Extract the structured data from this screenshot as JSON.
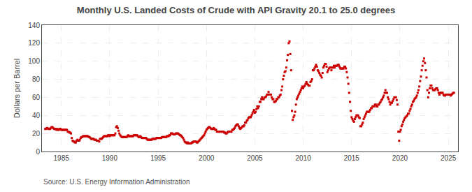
{
  "chart_data": {
    "type": "scatter",
    "title": "Monthly U.S. Landed Costs of Crude with API Gravity 20.1 to 25.0 degrees",
    "ylabel": "Dollars per Barrel",
    "annotations": [
      "Source: U.S. Energy Information Administration"
    ],
    "color": "#cc0000",
    "marker": "square",
    "grid": true,
    "xlim": [
      1983.0,
      2026.0
    ],
    "ylim": [
      0,
      140
    ],
    "xticks": [
      1985,
      1990,
      1995,
      2000,
      2005,
      2010,
      2015,
      2020,
      2025
    ],
    "yticks": [
      0,
      20,
      40,
      60,
      80,
      100,
      120,
      140
    ],
    "x": [
      1983.3333,
      1983.4167,
      1983.5,
      1983.5833,
      1983.6667,
      1983.75,
      1983.8333,
      1983.9167,
      1984,
      1984.0833,
      1984.1667,
      1984.25,
      1984.3333,
      1984.4167,
      1984.5,
      1984.5833,
      1984.6667,
      1984.75,
      1984.8333,
      1984.9167,
      1985,
      1985.0833,
      1985.1667,
      1985.25,
      1985.3333,
      1985.4167,
      1985.5,
      1985.5833,
      1985.6667,
      1985.75,
      1985.8333,
      1985.9167,
      1986,
      1986.0833,
      1986.1667,
      1986.25,
      1986.3333,
      1986.4167,
      1986.5,
      1986.5833,
      1986.6667,
      1986.75,
      1986.8333,
      1986.9167,
      1987,
      1987.0833,
      1987.1667,
      1987.25,
      1987.3333,
      1987.4167,
      1987.5,
      1987.5833,
      1987.6667,
      1987.75,
      1987.8333,
      1987.9167,
      1988,
      1988.0833,
      1988.1667,
      1988.25,
      1988.3333,
      1988.4167,
      1988.5,
      1988.5833,
      1988.6667,
      1988.75,
      1988.8333,
      1988.9167,
      1989,
      1989.0833,
      1989.1667,
      1989.25,
      1989.3333,
      1989.4167,
      1989.5,
      1989.5833,
      1989.6667,
      1989.75,
      1989.8333,
      1989.9167,
      1990,
      1990.0833,
      1990.1667,
      1990.25,
      1990.3333,
      1990.4167,
      1990.5,
      1990.5833,
      1990.6667,
      1990.75,
      1990.8333,
      1990.9167,
      1991,
      1991.0833,
      1991.1667,
      1991.25,
      1991.3333,
      1991.4167,
      1991.5,
      1991.5833,
      1991.6667,
      1991.75,
      1991.8333,
      1991.9167,
      1992,
      1992.0833,
      1992.1667,
      1992.25,
      1992.3333,
      1992.4167,
      1992.5,
      1992.5833,
      1992.6667,
      1992.75,
      1992.8333,
      1992.9167,
      1993,
      1993.0833,
      1993.1667,
      1993.25,
      1993.3333,
      1993.4167,
      1993.5,
      1993.5833,
      1993.6667,
      1993.75,
      1993.8333,
      1993.9167,
      1994,
      1994.0833,
      1994.1667,
      1994.25,
      1994.3333,
      1994.4167,
      1994.5,
      1994.5833,
      1994.6667,
      1994.75,
      1994.8333,
      1994.9167,
      1995,
      1995.0833,
      1995.1667,
      1995.25,
      1995.3333,
      1995.4167,
      1995.5,
      1995.5833,
      1995.6667,
      1995.75,
      1995.8333,
      1995.9167,
      1996,
      1996.0833,
      1996.1667,
      1996.25,
      1996.3333,
      1996.4167,
      1996.5,
      1996.5833,
      1996.6667,
      1996.75,
      1996.8333,
      1996.9167,
      1997,
      1997.0833,
      1997.1667,
      1997.25,
      1997.3333,
      1997.4167,
      1997.5,
      1997.5833,
      1997.6667,
      1997.75,
      1997.8333,
      1997.9167,
      1998,
      1998.0833,
      1998.1667,
      1998.25,
      1998.3333,
      1998.4167,
      1998.5,
      1998.5833,
      1998.6667,
      1998.75,
      1998.8333,
      1998.9167,
      1999,
      1999.0833,
      1999.1667,
      1999.25,
      1999.3333,
      1999.4167,
      1999.5,
      1999.5833,
      1999.6667,
      1999.75,
      1999.8333,
      1999.9167,
      2000,
      2000.0833,
      2000.1667,
      2000.25,
      2000.3333,
      2000.4167,
      2000.5,
      2000.5833,
      2000.6667,
      2000.75,
      2000.8333,
      2000.9167,
      2001,
      2001.0833,
      2001.1667,
      2001.25,
      2001.3333,
      2001.4167,
      2001.5,
      2001.5833,
      2001.6667,
      2001.75,
      2001.8333,
      2001.9167,
      2002,
      2002.0833,
      2002.1667,
      2002.25,
      2002.3333,
      2002.4167,
      2002.5,
      2002.5833,
      2002.6667,
      2002.75,
      2002.8333,
      2002.9167,
      2003,
      2003.0833,
      2003.1667,
      2003.25,
      2003.3333,
      2003.4167,
      2003.5,
      2003.5833,
      2003.6667,
      2003.75,
      2003.8333,
      2003.9167,
      2004,
      2004.0833,
      2004.1667,
      2004.25,
      2004.3333,
      2004.4167,
      2004.5,
      2004.5833,
      2004.6667,
      2004.75,
      2004.8333,
      2004.9167,
      2005,
      2005.0833,
      2005.1667,
      2005.25,
      2005.3333,
      2005.4167,
      2005.5,
      2005.5833,
      2005.6667,
      2005.75,
      2005.8333,
      2005.9167,
      2006,
      2006.0833,
      2006.1667,
      2006.25,
      2006.3333,
      2006.4167,
      2006.5,
      2006.5833,
      2006.6667,
      2006.75,
      2006.8333,
      2006.9167,
      2007,
      2007.0833,
      2007.1667,
      2007.25,
      2007.3333,
      2007.4167,
      2007.5,
      2007.5833,
      2007.6667,
      2007.75,
      2007.8333,
      2007.9167,
      2008,
      2008.0833,
      2008.1667,
      2008.25,
      2008.3333,
      2008.4167,
      2008.5,
      2008.5833,
      2008.6667,
      2008.75,
      2008.8333,
      2008.9167,
      2009,
      2009.0833,
      2009.1667,
      2009.25,
      2009.3333,
      2009.4167,
      2009.5,
      2009.5833,
      2009.6667,
      2009.75,
      2009.8333,
      2009.9167,
      2010,
      2010.0833,
      2010.1667,
      2010.25,
      2010.3333,
      2010.4167,
      2010.5,
      2010.5833,
      2010.6667,
      2010.75,
      2010.8333,
      2010.9167,
      2011,
      2011.0833,
      2011.1667,
      2011.25,
      2011.3333,
      2011.4167,
      2011.5,
      2011.5833,
      2011.6667,
      2011.75,
      2011.8333,
      2011.9167,
      2012,
      2012.0833,
      2012.1667,
      2012.25,
      2012.3333,
      2012.4167,
      2012.5,
      2012.5833,
      2012.6667,
      2012.75,
      2012.8333,
      2012.9167,
      2013,
      2013.0833,
      2013.1667,
      2013.25,
      2013.3333,
      2013.4167,
      2013.5,
      2013.5833,
      2013.6667,
      2013.75,
      2013.8333,
      2013.9167,
      2014,
      2014.0833,
      2014.1667,
      2014.25,
      2014.3333,
      2014.4167,
      2014.5,
      2014.5833,
      2014.6667,
      2014.75,
      2014.8333,
      2014.9167,
      2015,
      2015.0833,
      2015.1667,
      2015.25,
      2015.3333,
      2015.4167,
      2015.5,
      2015.5833,
      2015.6667,
      2015.75,
      2015.8333,
      2015.9167,
      2016,
      2016.0833,
      2016.1667,
      2016.25,
      2016.3333,
      2016.4167,
      2016.5,
      2016.5833,
      2016.6667,
      2016.75,
      2016.8333,
      2016.9167,
      2017,
      2017.0833,
      2017.1667,
      2017.25,
      2017.3333,
      2017.4167,
      2017.5,
      2017.5833,
      2017.6667,
      2017.75,
      2017.8333,
      2017.9167,
      2018,
      2018.0833,
      2018.1667,
      2018.25,
      2018.3333,
      2018.4167,
      2018.5,
      2018.5833,
      2018.6667,
      2018.75,
      2018.8333,
      2018.9167,
      2019,
      2019.0833,
      2019.1667,
      2019.25,
      2019.3333,
      2019.4167,
      2019.5,
      2019.5833,
      2019.6667,
      2019.75,
      2019.8333,
      2019.9167,
      2020,
      2020.0833,
      2020.1667,
      2020.25,
      2020.3333,
      2020.4167,
      2020.5,
      2020.5833,
      2020.6667,
      2020.75,
      2020.8333,
      2020.9167,
      2021,
      2021.0833,
      2021.1667,
      2021.25,
      2021.3333,
      2021.4167,
      2021.5,
      2021.5833,
      2021.6667,
      2021.75,
      2021.8333,
      2021.9167,
      2022,
      2022.0833,
      2022.1667,
      2022.25,
      2022.3333,
      2022.4167,
      2022.5,
      2022.5833,
      2022.6667,
      2022.75,
      2022.8333,
      2022.9167,
      2023,
      2023.0833,
      2023.1667,
      2023.25,
      2023.3333,
      2023.4167,
      2023.5,
      2023.5833,
      2023.6667,
      2023.75,
      2023.8333,
      2023.9167,
      2024,
      2024.0833,
      2024.1667,
      2024.25,
      2024.3333,
      2024.4167,
      2024.5,
      2024.5833,
      2024.6667,
      2024.75,
      2024.8333,
      2024.9167,
      2025,
      2025.0833,
      2025.1667,
      2025.25,
      2025.3333,
      2025.4167,
      2025.5,
      2025.5833
    ],
    "values": [
      25,
      25,
      26,
      26,
      25,
      25,
      25,
      26,
      27,
      27,
      26,
      25,
      25,
      25,
      24,
      25,
      24,
      24,
      25,
      25,
      24,
      24,
      24,
      24,
      24,
      24,
      24,
      24,
      22,
      22,
      21,
      21,
      20,
      15,
      12,
      11,
      11,
      10,
      10,
      12,
      13,
      12,
      12,
      13,
      15,
      16,
      16,
      17,
      17,
      17,
      17,
      17,
      17,
      17,
      16,
      16,
      15,
      14,
      14,
      14,
      14,
      13,
      13,
      13,
      12,
      12,
      12,
      11,
      14,
      14,
      14,
      15,
      16,
      17,
      17,
      17,
      17,
      17,
      18,
      18,
      17,
      18,
      18,
      18,
      18,
      18,
      18,
      20,
      27,
      28,
      26,
      23,
      20,
      18,
      17,
      16,
      16,
      16,
      16,
      16,
      16,
      16,
      17,
      18,
      17,
      17,
      17,
      17,
      17,
      17,
      18,
      18,
      18,
      18,
      18,
      17,
      16,
      16,
      17,
      16,
      15,
      15,
      15,
      15,
      15,
      15,
      14,
      13,
      13,
      13,
      13,
      13,
      13,
      14,
      14,
      14,
      14,
      14,
      15,
      15,
      15,
      15,
      15,
      15,
      15,
      16,
      16,
      16,
      16,
      16,
      16,
      17,
      17,
      17,
      18,
      18,
      20,
      20,
      20,
      19,
      19,
      19,
      20,
      20,
      20,
      20,
      19,
      18,
      18,
      17,
      16,
      15,
      13,
      11,
      10,
      10,
      9,
      10,
      9,
      9,
      9,
      9,
      10,
      10,
      11,
      11,
      11,
      11,
      10,
      10,
      11,
      12,
      13,
      14,
      15,
      16,
      17,
      18,
      20,
      22,
      24,
      25,
      26,
      27,
      27,
      26,
      25,
      25,
      25,
      26,
      25,
      24,
      24,
      22,
      22,
      22,
      22,
      22,
      22,
      22,
      22,
      22,
      21,
      21,
      20,
      20,
      21,
      22,
      22,
      22,
      22,
      22,
      24,
      24,
      25,
      26,
      28,
      29,
      30,
      30,
      28,
      26,
      25,
      26,
      27,
      28,
      28,
      29,
      32,
      32,
      34,
      35,
      37,
      38,
      38,
      38,
      40,
      42,
      44,
      46,
      43,
      44,
      47,
      50,
      48,
      50,
      55,
      55,
      58,
      60,
      58,
      58,
      60,
      60,
      61,
      63,
      63,
      66,
      63,
      63,
      63,
      60,
      58,
      58,
      55,
      55,
      56,
      58,
      58,
      60,
      60,
      62,
      63,
      68,
      72,
      80,
      84,
      88,
      89,
      93,
      101,
      107,
      120,
      122,
      108,
      90,
      45,
      35,
      38,
      40,
      44,
      52,
      58,
      60,
      62,
      64,
      66,
      68,
      70,
      72,
      70,
      72,
      73,
      75,
      77,
      75,
      74,
      73,
      73,
      77,
      78,
      80,
      90,
      90,
      92,
      94,
      96,
      94,
      90,
      89,
      87,
      85,
      84,
      82,
      87,
      93,
      95,
      97,
      97,
      94,
      88,
      90,
      92,
      93,
      93,
      90,
      93,
      93,
      95,
      93,
      95,
      95,
      95,
      96,
      96,
      94,
      92,
      92,
      92,
      92,
      92,
      94,
      94,
      92,
      88,
      82,
      75,
      65,
      55,
      45,
      38,
      36,
      34,
      33,
      36,
      38,
      40,
      40,
      40,
      38,
      37,
      28,
      28,
      30,
      32,
      36,
      38,
      40,
      42,
      44,
      44,
      44,
      44,
      46,
      48,
      48,
      50,
      50,
      50,
      52,
      52,
      50,
      50,
      52,
      52,
      54,
      55,
      57,
      58,
      60,
      62,
      65,
      68,
      65,
      65,
      60,
      58,
      55,
      52,
      54,
      54,
      56,
      58,
      60,
      60,
      60,
      57,
      52,
      22,
      12,
      22,
      24,
      28,
      30,
      33,
      35,
      37,
      38,
      39,
      40,
      42,
      42,
      45,
      47,
      50,
      52,
      55,
      56,
      58,
      59,
      60,
      62,
      65,
      68,
      72,
      78,
      83,
      90,
      95,
      100,
      103,
      98,
      90,
      82,
      68,
      60,
      65,
      70,
      73,
      73,
      70,
      68,
      68,
      68,
      69,
      70,
      70,
      68,
      65,
      63,
      65,
      65,
      65,
      65,
      63,
      62,
      62,
      63,
      63,
      63,
      63,
      63,
      63,
      62,
      63,
      64,
      65,
      65
    ]
  }
}
